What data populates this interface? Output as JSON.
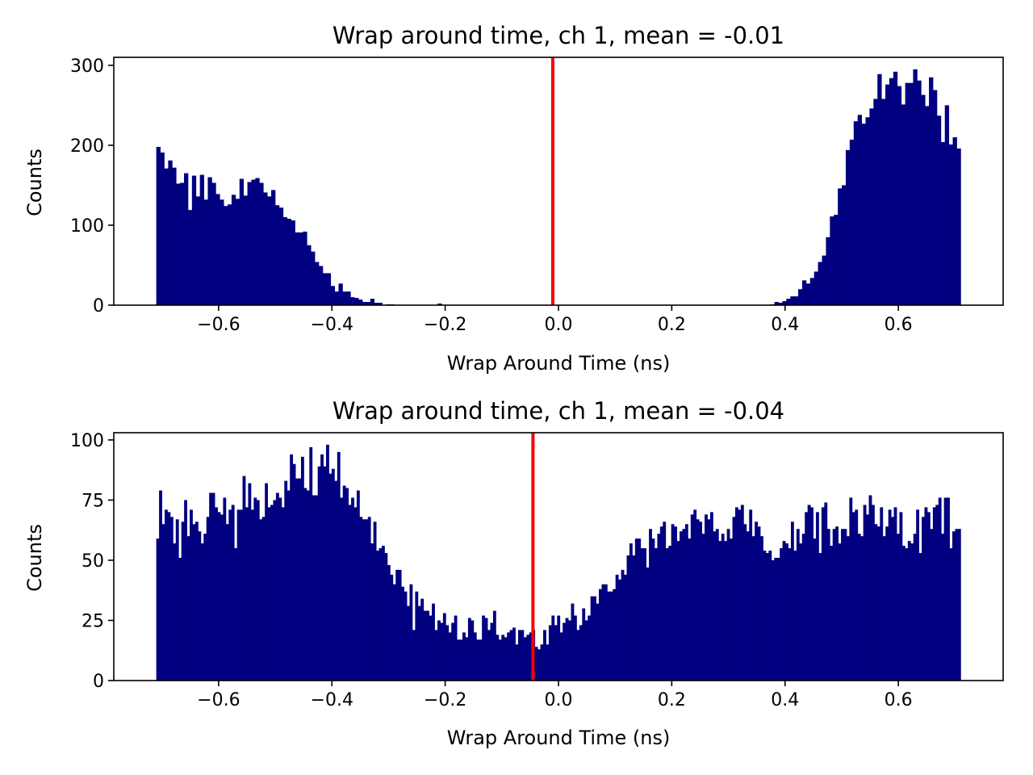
{
  "chart_data": [
    {
      "type": "bar",
      "title": "Wrap around time, ch 1, mean = -0.01",
      "xlabel": "Wrap Around Time (ns)",
      "ylabel": "Counts",
      "xlim": [
        -0.785,
        0.785
      ],
      "ylim": [
        0,
        310
      ],
      "x_ticks": [
        -0.6,
        -0.4,
        -0.2,
        0.0,
        0.2,
        0.4,
        0.6
      ],
      "x_tick_labels": [
        "−0.6",
        "−0.4",
        "−0.2",
        "0.0",
        "0.2",
        "0.4",
        "0.6"
      ],
      "y_ticks": [
        0,
        100,
        200,
        300
      ],
      "y_tick_labels": [
        "0",
        "100",
        "200",
        "300"
      ],
      "grid": false,
      "bar_color": "#000080",
      "bin_range": [
        -0.71,
        0.71
      ],
      "values": [
        198,
        191,
        171,
        181,
        172,
        152,
        153,
        165,
        119,
        162,
        136,
        163,
        132,
        160,
        153,
        139,
        132,
        124,
        126,
        138,
        133,
        158,
        137,
        154,
        157,
        159,
        153,
        141,
        136,
        144,
        125,
        122,
        110,
        108,
        106,
        91,
        91,
        92,
        75,
        67,
        54,
        49,
        40,
        40,
        24,
        17,
        27,
        17,
        17,
        10,
        9,
        7,
        4,
        4,
        8,
        3,
        3,
        0,
        1,
        1,
        0,
        0,
        0,
        0,
        0,
        0,
        0,
        0,
        0,
        0,
        0,
        2,
        0,
        0,
        0,
        0,
        0,
        0,
        0,
        0,
        0,
        0,
        0,
        0,
        0,
        0,
        0,
        0,
        0,
        0,
        0,
        0,
        0,
        0,
        0,
        0,
        0,
        0,
        0,
        0,
        0,
        0,
        0,
        0,
        0,
        0,
        0,
        0,
        0,
        0,
        0,
        0,
        0,
        0,
        0,
        0,
        0,
        0,
        0,
        0,
        0,
        0,
        0,
        0,
        0,
        0,
        0,
        0,
        0,
        0,
        0,
        0,
        0,
        0,
        0,
        0,
        0,
        0,
        0,
        0,
        0,
        0,
        0,
        0,
        0,
        0,
        0,
        0,
        0,
        0,
        0,
        0,
        0,
        0,
        0,
        1,
        4,
        3,
        5,
        8,
        11,
        11,
        20,
        31,
        27,
        34,
        42,
        54,
        62,
        85,
        111,
        113,
        146,
        150,
        194,
        207,
        230,
        238,
        227,
        235,
        246,
        258,
        289,
        258,
        276,
        284,
        292,
        274,
        251,
        278,
        278,
        295,
        281,
        263,
        249,
        285,
        269,
        237,
        204,
        250,
        201,
        210,
        196
      ],
      "mean_line": {
        "x": -0.01,
        "color": "#ff0000"
      }
    },
    {
      "type": "bar",
      "title": "Wrap around time, ch 1, mean = -0.04",
      "xlabel": "Wrap Around Time (ns)",
      "ylabel": "Counts",
      "xlim": [
        -0.785,
        0.785
      ],
      "ylim": [
        0,
        103
      ],
      "x_ticks": [
        -0.6,
        -0.4,
        -0.2,
        0.0,
        0.2,
        0.4,
        0.6
      ],
      "x_tick_labels": [
        "−0.6",
        "−0.4",
        "−0.2",
        "0.0",
        "0.2",
        "0.4",
        "0.6"
      ],
      "y_ticks": [
        0,
        25,
        50,
        75,
        100
      ],
      "y_tick_labels": [
        "0",
        "25",
        "50",
        "75",
        "100"
      ],
      "grid": false,
      "bar_color": "#000080",
      "bin_range": [
        -0.71,
        0.71
      ],
      "values": [
        59,
        79,
        65,
        71,
        70,
        68,
        57,
        67,
        51,
        66,
        75,
        60,
        71,
        65,
        66,
        62,
        57,
        61,
        68,
        78,
        78,
        72,
        70,
        69,
        76,
        65,
        71,
        73,
        55,
        71,
        71,
        85,
        72,
        82,
        71,
        76,
        75,
        67,
        68,
        82,
        72,
        73,
        75,
        78,
        76,
        72,
        83,
        79,
        94,
        90,
        84,
        84,
        93,
        80,
        79,
        97,
        77,
        77,
        89,
        94,
        89,
        98,
        86,
        88,
        83,
        95,
        76,
        81,
        80,
        73,
        76,
        72,
        79,
        68,
        67,
        67,
        68,
        57,
        66,
        54,
        55,
        56,
        53,
        48,
        44,
        40,
        46,
        46,
        39,
        37,
        31,
        40,
        21,
        37,
        31,
        34,
        29,
        29,
        27,
        32,
        21,
        25,
        24,
        28,
        23,
        20,
        24,
        27,
        17,
        17,
        20,
        18,
        26,
        25,
        20,
        17,
        17,
        27,
        26,
        21,
        24,
        29,
        19,
        17,
        19,
        18,
        20,
        21,
        22,
        15,
        21,
        21,
        18,
        19,
        20,
        21,
        14,
        13,
        15,
        21,
        15,
        23,
        27,
        23,
        27,
        20,
        24,
        26,
        25,
        32,
        27,
        21,
        23,
        30,
        25,
        27,
        35,
        35,
        32,
        38,
        40,
        40,
        37,
        37,
        38,
        44,
        42,
        46,
        44,
        52,
        57,
        52,
        59,
        59,
        55,
        55,
        47,
        63,
        59,
        55,
        61,
        64,
        66,
        55,
        56,
        65,
        64,
        58,
        62,
        63,
        65,
        59,
        69,
        71,
        67,
        66,
        61,
        69,
        67,
        70,
        62,
        63,
        58,
        61,
        58,
        63,
        59,
        68,
        72,
        71,
        73,
        65,
        62,
        71,
        60,
        66,
        64,
        60,
        54,
        53,
        54,
        50,
        51,
        51,
        55,
        58,
        57,
        55,
        66,
        54,
        63,
        57,
        61,
        70,
        73,
        72,
        59,
        70,
        53,
        72,
        74,
        63,
        56,
        63,
        64,
        57,
        63,
        63,
        60,
        76,
        70,
        71,
        61,
        60,
        73,
        69,
        77,
        73,
        65,
        64,
        72,
        60,
        64,
        71,
        68,
        72,
        61,
        70,
        56,
        55,
        58,
        57,
        61,
        71,
        53,
        68,
        72,
        70,
        63,
        72,
        73,
        76,
        61,
        76,
        76,
        55,
        62,
        63,
        63
      ],
      "mean_line": {
        "x": -0.045,
        "color": "#ff0000"
      }
    }
  ]
}
